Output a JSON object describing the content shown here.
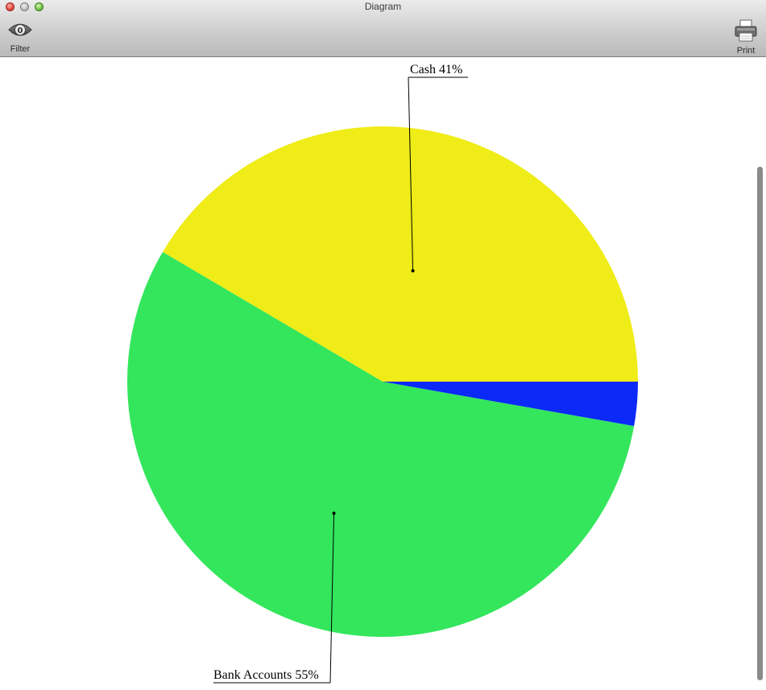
{
  "window": {
    "title": "Diagram"
  },
  "toolbar": {
    "filter_label": "Filter",
    "filter_icon": "eye-icon",
    "print_label": "Print",
    "print_icon": "printer-icon"
  },
  "chart_data": {
    "type": "pie",
    "slices": [
      {
        "label": "Cash",
        "percent_label": "41%",
        "value": 41,
        "color": "#efec18",
        "annotated": true
      },
      {
        "label": "Bank Accounts",
        "percent_label": "55%",
        "value": 55,
        "color": "#33e65c",
        "annotated": true
      },
      {
        "label": "",
        "percent_label": "",
        "value": 2.75,
        "color": "#0b29f7",
        "annotated": false
      }
    ],
    "start_angle_deg": 0,
    "direction": "counterclockwise"
  }
}
